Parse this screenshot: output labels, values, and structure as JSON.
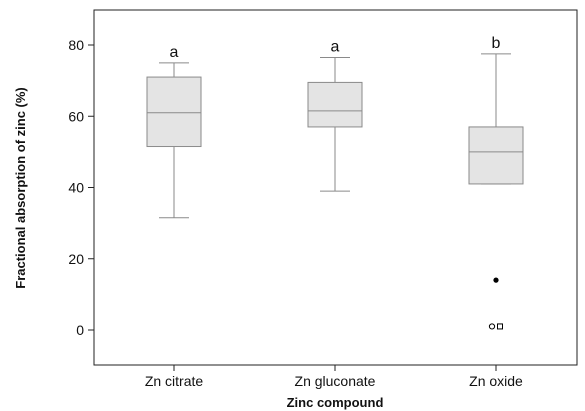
{
  "chart_data": {
    "type": "box",
    "title": "",
    "xlabel": "Zinc compound",
    "ylabel": "Fractional absorption of zinc (%)",
    "ylim": [
      -9,
      96
    ],
    "yticks": [
      0,
      20,
      40,
      60,
      80
    ],
    "grid": false,
    "categories": [
      "Zn citrate",
      "Zn gluconate",
      "Zn oxide"
    ],
    "boxes": [
      {
        "category": "Zn citrate",
        "whisker_low": 31.5,
        "q1": 51.5,
        "median": 61,
        "q3": 71,
        "whisker_high": 75,
        "letter": "a",
        "outliers": []
      },
      {
        "category": "Zn gluconate",
        "whisker_low": 39,
        "q1": 57,
        "median": 61.5,
        "q3": 69.5,
        "whisker_high": 76.5,
        "letter": "a",
        "outliers": []
      },
      {
        "category": "Zn oxide",
        "whisker_low": 41,
        "q1": 41,
        "median": 50,
        "q3": 57,
        "whisker_high": 77.5,
        "letter": "b",
        "outliers": [
          {
            "value": 14,
            "marker": "filled-circle"
          },
          {
            "value": 1,
            "marker": "open-circle",
            "offset": -1
          },
          {
            "value": 1,
            "marker": "open-square",
            "offset": 1
          }
        ]
      }
    ],
    "colors": {
      "box_fill": "#e4e4e4",
      "box_stroke": "#8a8a8a",
      "frame": "#222222",
      "median": "#8a8a8a"
    }
  }
}
